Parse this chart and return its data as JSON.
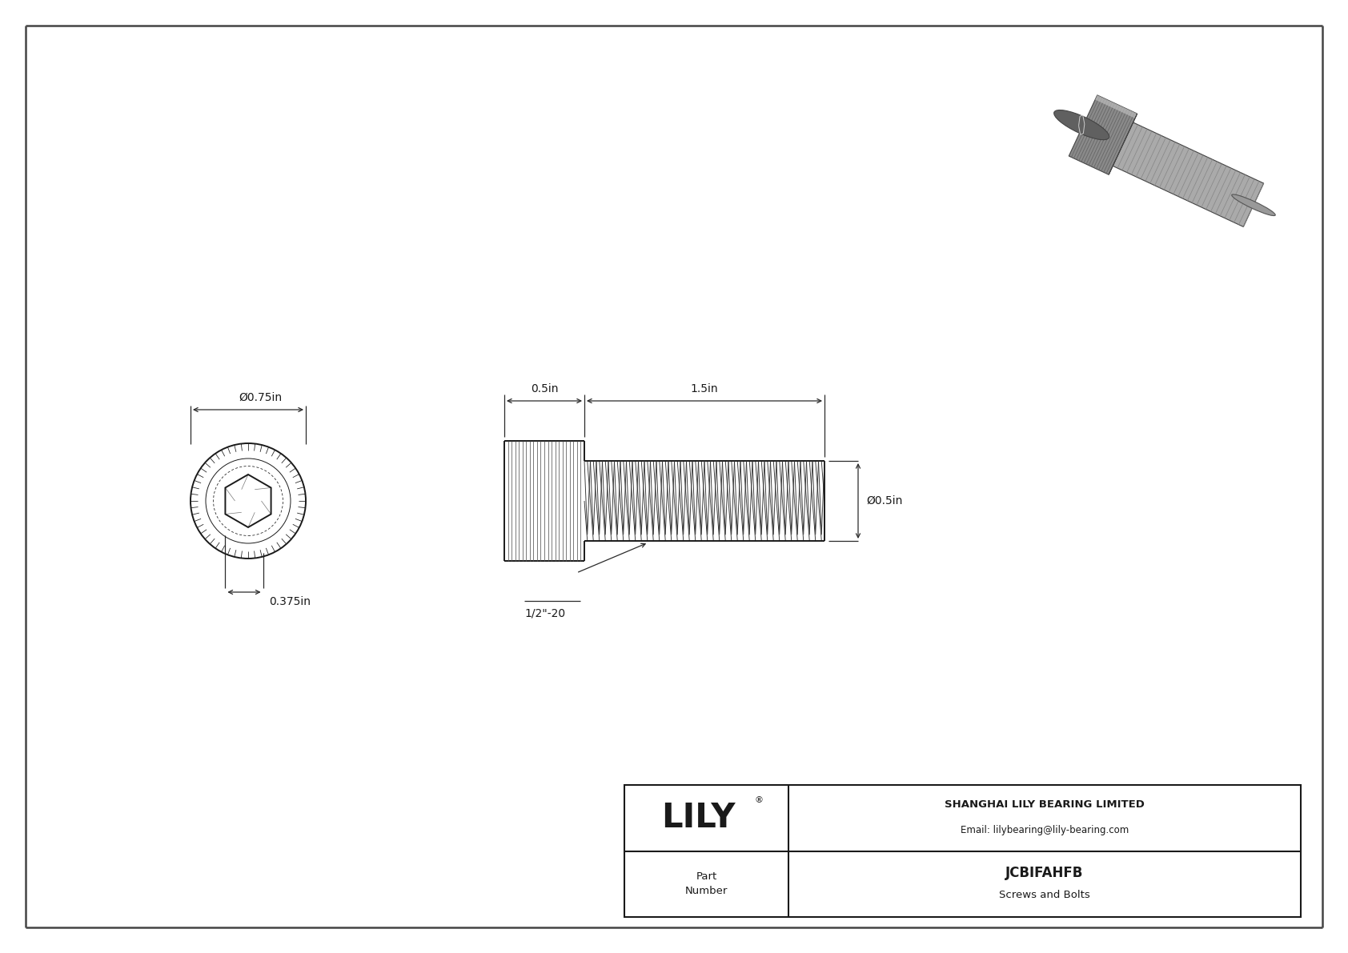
{
  "bg_color": "#ffffff",
  "line_color": "#1a1a1a",
  "dim_color": "#2a2a2a",
  "title": "JCBIFAHFB",
  "subtitle": "Screws and Bolts",
  "company": "SHANGHAI LILY BEARING LIMITED",
  "email": "Email: lilybearing@lily-bearing.com",
  "part_label": "Part\nNumber",
  "dim_head_length": "0.5in",
  "dim_thread_length": "1.5in",
  "dim_diameter": "Ø0.5in",
  "dim_head_diameter": "Ø0.75in",
  "dim_hex_socket": "0.375in",
  "thread_label": "1/2\"-20",
  "border_color": "#444444",
  "knurl_color": "#555555",
  "thread_color": "#333333"
}
